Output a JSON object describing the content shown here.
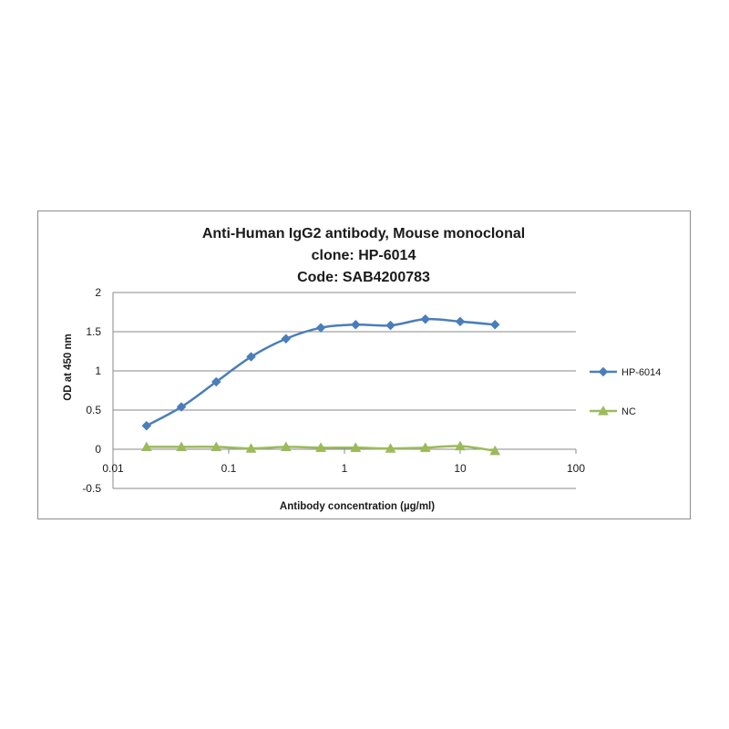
{
  "chart_data": {
    "type": "line",
    "title": [
      "Anti-Human IgG2 antibody, Mouse monoclonal",
      "clone: HP-6014",
      "Code: SAB4200783"
    ],
    "xlabel": "Antibody concentration (µg/ml)",
    "ylabel": "OD at 450 nm",
    "xscale": "log",
    "xlim": [
      0.01,
      100
    ],
    "ylim": [
      -0.5,
      2
    ],
    "xticks": [
      0.01,
      0.1,
      1,
      10,
      100
    ],
    "xtick_labels": [
      "0.01",
      "0.1",
      "1",
      "10",
      "100"
    ],
    "yticks": [
      -0.5,
      0,
      0.5,
      1,
      1.5,
      2
    ],
    "ytick_labels": [
      "-0.5",
      "0",
      "0.5",
      "1",
      "1.5",
      "2"
    ],
    "grid": "horizontal",
    "legend_position": "right",
    "x": [
      0.0195,
      0.039,
      0.078,
      0.156,
      0.3125,
      0.625,
      1.25,
      2.5,
      5,
      10,
      20
    ],
    "series": [
      {
        "name": "HP-6014",
        "color": "#4a7ebb",
        "marker": "diamond",
        "values": [
          0.3,
          0.54,
          0.86,
          1.18,
          1.41,
          1.55,
          1.59,
          1.58,
          1.66,
          1.63,
          1.59
        ]
      },
      {
        "name": "NC",
        "color": "#9bbb59",
        "marker": "triangle",
        "values": [
          0.03,
          0.03,
          0.03,
          0.01,
          0.03,
          0.02,
          0.02,
          0.01,
          0.02,
          0.04,
          -0.02
        ]
      }
    ]
  }
}
